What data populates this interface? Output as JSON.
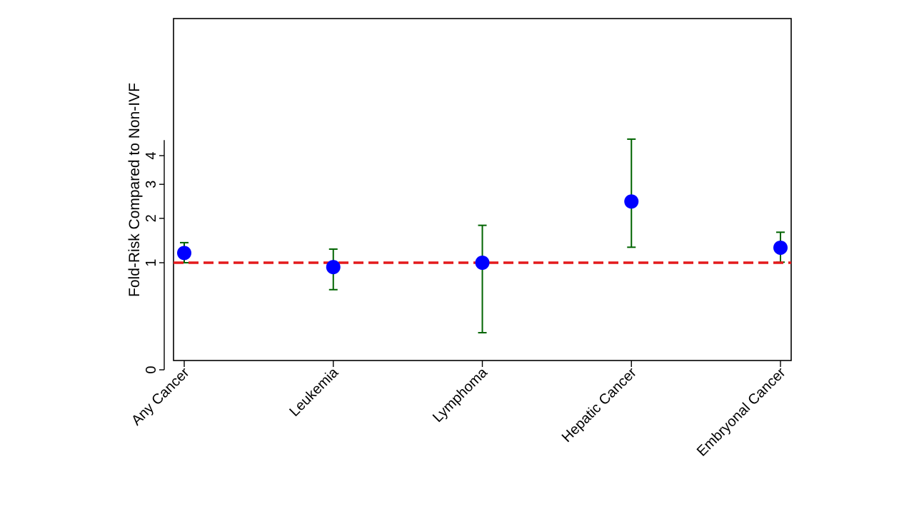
{
  "chart_data": {
    "type": "scatter",
    "ylabel": "Fold-Risk Compared to Non-IVF",
    "xlabel": "",
    "y_scale": "sqrt",
    "ylim": [
      0,
      4.6
    ],
    "y_ticks": [
      0,
      1,
      2,
      3,
      4
    ],
    "y_tick_labels": [
      "0",
      "1",
      "2",
      "3",
      "4"
    ],
    "categories": [
      "Any Cancer",
      "Leukemia",
      "Lymphoma",
      "Hepatic Cancer",
      "Embryonal Cancer"
    ],
    "series": [
      {
        "values": [
          1.19,
          0.92,
          1.0,
          2.47,
          1.3
        ],
        "ci_low": [
          1.0,
          0.56,
          0.12,
          1.31,
          1.01
        ],
        "ci_high": [
          1.41,
          1.27,
          1.82,
          4.64,
          1.65
        ]
      }
    ],
    "reference_line": {
      "y": 1,
      "style": "dashed"
    },
    "grid": false,
    "colors": {
      "point": "#0000ff",
      "error_bar": "#006400",
      "reference_line": "#e31a1c",
      "axis": "#000000"
    }
  }
}
